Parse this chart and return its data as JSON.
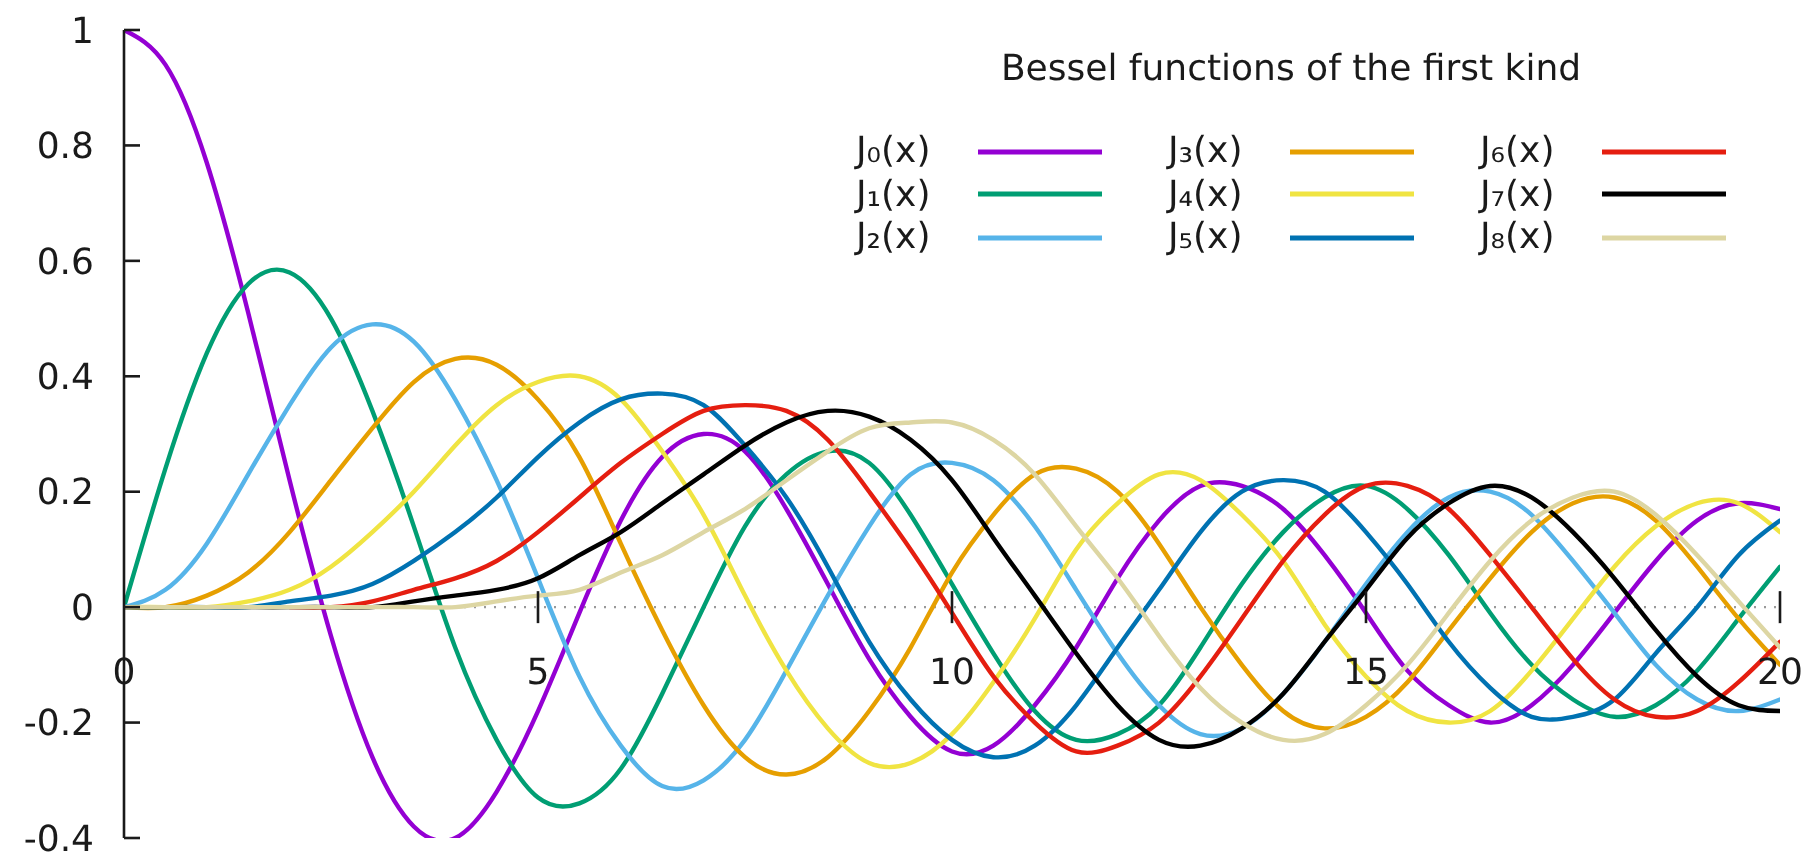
{
  "chart_data": {
    "type": "line",
    "legend_title": "Bessel functions of the first kind",
    "x": [
      0,
      0.5,
      1,
      1.5,
      2,
      2.5,
      3,
      3.5,
      4,
      4.5,
      5,
      5.5,
      6,
      6.5,
      7,
      7.5,
      8,
      8.5,
      9,
      9.5,
      10,
      10.5,
      11,
      11.5,
      12,
      12.5,
      13,
      13.5,
      14,
      14.5,
      15,
      15.5,
      16,
      16.5,
      17,
      17.5,
      18,
      18.5,
      19,
      19.5,
      20
    ],
    "series": [
      {
        "name": "J₀(x)",
        "color": "#9400d3",
        "values": [
          1,
          0.94,
          0.77,
          0.51,
          0.22,
          -0.05,
          -0.26,
          -0.38,
          -0.4,
          -0.32,
          -0.18,
          -0.01,
          0.15,
          0.26,
          0.3,
          0.27,
          0.17,
          0.04,
          -0.09,
          -0.19,
          -0.25,
          -0.24,
          -0.17,
          -0.07,
          0.05,
          0.15,
          0.21,
          0.21,
          0.17,
          0.09,
          -0.01,
          -0.11,
          -0.17,
          -0.2,
          -0.17,
          -0.1,
          -0.01,
          0.08,
          0.15,
          0.18,
          0.17
        ]
      },
      {
        "name": "J₁(x)",
        "color": "#009e73",
        "values": [
          0,
          0.24,
          0.44,
          0.56,
          0.58,
          0.5,
          0.34,
          0.14,
          -0.07,
          -0.23,
          -0.33,
          -0.34,
          -0.28,
          -0.15,
          0,
          0.14,
          0.23,
          0.27,
          0.25,
          0.16,
          0.04,
          -0.08,
          -0.18,
          -0.23,
          -0.22,
          -0.17,
          -0.07,
          0.04,
          0.13,
          0.19,
          0.21,
          0.17,
          0.09,
          -0.01,
          -0.1,
          -0.16,
          -0.19,
          -0.17,
          -0.11,
          -0.02,
          0.07
        ]
      },
      {
        "name": "J₂(x)",
        "color": "#56b4e9",
        "values": [
          0,
          0.03,
          0.11,
          0.23,
          0.35,
          0.45,
          0.49,
          0.46,
          0.36,
          0.22,
          0.05,
          -0.12,
          -0.24,
          -0.31,
          -0.3,
          -0.23,
          -0.11,
          0.02,
          0.14,
          0.23,
          0.25,
          0.22,
          0.14,
          0.03,
          -0.08,
          -0.17,
          -0.22,
          -0.21,
          -0.15,
          -0.06,
          0.04,
          0.13,
          0.19,
          0.2,
          0.16,
          0.08,
          -0.01,
          -0.1,
          -0.16,
          -0.18,
          -0.16
        ]
      },
      {
        "name": "J₃(x)",
        "color": "#e69f00",
        "values": [
          0,
          0,
          0.02,
          0.06,
          0.13,
          0.22,
          0.31,
          0.39,
          0.43,
          0.42,
          0.36,
          0.26,
          0.11,
          -0.04,
          -0.17,
          -0.26,
          -0.29,
          -0.26,
          -0.18,
          -0.07,
          0.06,
          0.16,
          0.23,
          0.24,
          0.2,
          0.11,
          0,
          -0.1,
          -0.18,
          -0.21,
          -0.19,
          -0.13,
          -0.04,
          0.05,
          0.13,
          0.18,
          0.19,
          0.15,
          0.07,
          -0.02,
          -0.1
        ]
      },
      {
        "name": "J₄(x)",
        "color": "#f0e442",
        "values": [
          0,
          0,
          0,
          0.01,
          0.03,
          0.07,
          0.13,
          0.2,
          0.28,
          0.35,
          0.39,
          0.4,
          0.36,
          0.27,
          0.16,
          0.02,
          -0.11,
          -0.21,
          -0.27,
          -0.27,
          -0.22,
          -0.13,
          -0.02,
          0.1,
          0.18,
          0.23,
          0.22,
          0.16,
          0.08,
          -0.03,
          -0.12,
          -0.18,
          -0.2,
          -0.18,
          -0.11,
          -0.02,
          0.07,
          0.14,
          0.18,
          0.18,
          0.13
        ]
      },
      {
        "name": "J₅(x)",
        "color": "#0072b2",
        "values": [
          0,
          0,
          0,
          0,
          0.01,
          0.02,
          0.04,
          0.08,
          0.13,
          0.19,
          0.26,
          0.32,
          0.36,
          0.37,
          0.35,
          0.28,
          0.19,
          0.07,
          -0.06,
          -0.16,
          -0.23,
          -0.26,
          -0.24,
          -0.17,
          -0.07,
          0.03,
          0.13,
          0.2,
          0.22,
          0.2,
          0.13,
          0.04,
          -0.06,
          -0.14,
          -0.19,
          -0.19,
          -0.16,
          -0.08,
          0,
          0.09,
          0.15
        ]
      },
      {
        "name": "J₆(x)",
        "color": "#e51e10",
        "values": [
          null,
          null,
          null,
          null,
          0,
          0,
          0.01,
          0.03,
          0.05,
          0.08,
          0.13,
          0.19,
          0.25,
          0.3,
          0.34,
          0.35,
          0.34,
          0.29,
          0.2,
          0.1,
          -0.01,
          -0.12,
          -0.2,
          -0.25,
          -0.24,
          -0.2,
          -0.12,
          -0.02,
          0.08,
          0.16,
          0.21,
          0.21,
          0.17,
          0.09,
          0,
          -0.09,
          -0.16,
          -0.19,
          -0.18,
          -0.13,
          -0.06
        ]
      },
      {
        "name": "J₇(x)",
        "color": "#000000",
        "values": [
          0,
          0,
          0,
          0,
          0,
          0,
          0,
          0.01,
          0.02,
          0.03,
          0.05,
          0.09,
          0.13,
          0.18,
          0.23,
          0.28,
          0.32,
          0.34,
          0.33,
          0.29,
          0.22,
          0.12,
          0.02,
          -0.08,
          -0.17,
          -0.23,
          -0.24,
          -0.21,
          -0.15,
          -0.06,
          0.03,
          0.12,
          0.18,
          0.21,
          0.19,
          0.13,
          0.05,
          -0.04,
          -0.12,
          -0.17,
          -0.18
        ]
      },
      {
        "name": "J₈(x)",
        "color": "#ddd6a3",
        "values": [
          0,
          0,
          0,
          0,
          0,
          0,
          0,
          0,
          0,
          0.01,
          0.02,
          0.03,
          0.06,
          0.09,
          0.13,
          0.17,
          0.22,
          0.27,
          0.31,
          0.32,
          0.32,
          0.29,
          0.23,
          0.14,
          0.05,
          -0.05,
          -0.14,
          -0.2,
          -0.23,
          -0.22,
          -0.17,
          -0.1,
          -0.01,
          0.08,
          0.15,
          0.19,
          0.2,
          0.16,
          0.09,
          0.01,
          -0.07
        ]
      }
    ],
    "xlim": [
      0,
      20
    ],
    "xticks": [
      0,
      5,
      10,
      15,
      20
    ],
    "ylim": [
      -0.4,
      1
    ],
    "yticks": [
      -0.4,
      -0.2,
      0,
      0.2,
      0.4,
      0.6,
      0.8,
      1
    ],
    "legend": "top right",
    "ref_lines": [
      {
        "axis": "y",
        "value": 0,
        "line_style": "dotted",
        "color": "#999999"
      }
    ]
  }
}
